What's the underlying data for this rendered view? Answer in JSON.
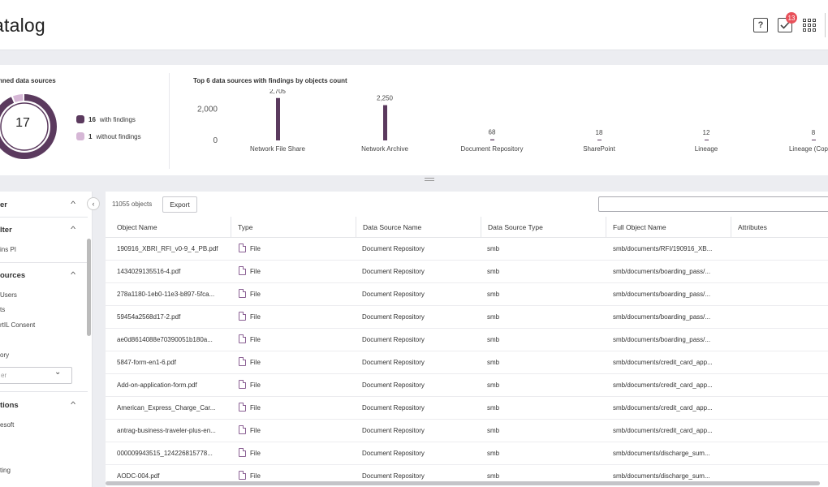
{
  "header": {
    "title": "atalog",
    "help_glyph": "?",
    "tasks_badge": "13"
  },
  "summary": {
    "scanned_title": "nned data sources",
    "total": "17",
    "with_findings_count": "16",
    "with_findings_label": "with findings",
    "without_findings_count": "1",
    "without_findings_label": "without findings",
    "chart_title": "Top 6 data sources with findings by objects count",
    "colors": {
      "with": "#5b3a5e",
      "without": "#d6b7d6",
      "bar": "#5b3a5e"
    }
  },
  "chart_data": [
    {
      "type": "pie",
      "categories": [
        "with findings",
        "without findings"
      ],
      "values": [
        16,
        1
      ]
    },
    {
      "type": "bar",
      "title": "Top 6 data sources with findings by objects count",
      "categories": [
        "Network File Share",
        "Network Archive",
        "Document Repository",
        "SharePoint",
        "Lineage",
        "Lineage (Copy H"
      ],
      "values": [
        2705,
        2250,
        68,
        18,
        12,
        8
      ],
      "value_labels": [
        "2,705",
        "2,250",
        "68",
        "18",
        "12",
        "8"
      ],
      "yticks": [
        "0",
        "2,000"
      ],
      "ylim": [
        0,
        2900
      ]
    }
  ],
  "filters": {
    "panel_title": "er",
    "sections": [
      {
        "heading": "lter",
        "items": [
          "ins PI"
        ]
      },
      {
        "heading": "ources",
        "items": [
          "Users",
          "ts",
          "rtIL Consent",
          "ory"
        ]
      },
      {
        "heading": "tions",
        "items": [
          "esoft",
          "ting"
        ]
      }
    ],
    "select_placeholder": "er"
  },
  "table": {
    "count_label": "11055 objects",
    "export_label": "Export",
    "columns": [
      "Object Name",
      "Type",
      "Data Source Name",
      "Data Source Type",
      "Full Object Name",
      "Attributes"
    ],
    "rows": [
      [
        "190916_XBRI_RFI_v0-9_4_PB.pdf",
        "File",
        "Document Repository",
        "smb",
        "smb/documents/RFI/190916_XB..."
      ],
      [
        "1434029135516-4.pdf",
        "File",
        "Document Repository",
        "smb",
        "smb/documents/boarding_pass/..."
      ],
      [
        "278a1180-1eb0-11e3-b897-5fca...",
        "File",
        "Document Repository",
        "smb",
        "smb/documents/boarding_pass/..."
      ],
      [
        "59454a2568d17-2.pdf",
        "File",
        "Document Repository",
        "smb",
        "smb/documents/boarding_pass/..."
      ],
      [
        "ae0d8614088e70390051b180a...",
        "File",
        "Document Repository",
        "smb",
        "smb/documents/boarding_pass/..."
      ],
      [
        "5847-form-en1-6.pdf",
        "File",
        "Document Repository",
        "smb",
        "smb/documents/credit_card_app..."
      ],
      [
        "Add-on-application-form.pdf",
        "File",
        "Document Repository",
        "smb",
        "smb/documents/credit_card_app..."
      ],
      [
        "American_Express_Charge_Car...",
        "File",
        "Document Repository",
        "smb",
        "smb/documents/credit_card_app..."
      ],
      [
        "antrag-business-traveler-plus-en...",
        "File",
        "Document Repository",
        "smb",
        "smb/documents/credit_card_app..."
      ],
      [
        "000009943515_124226815778...",
        "File",
        "Document Repository",
        "smb",
        "smb/documents/discharge_sum..."
      ],
      [
        "AODC-004.pdf",
        "File",
        "Document Repository",
        "smb",
        "smb/documents/discharge_sum..."
      ]
    ]
  }
}
